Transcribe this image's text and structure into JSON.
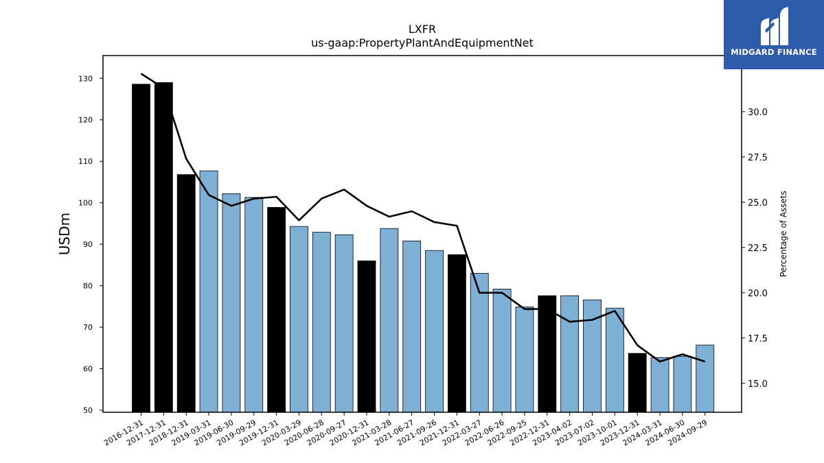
{
  "brand": {
    "name": "MIDGARD FINANCE",
    "bg_color": "#2e5bab"
  },
  "chart_data": {
    "type": "bar",
    "title": "LXFR",
    "subtitle": "us-gaap:PropertyPlantAndEquipmentNet",
    "ylabel": "USDm",
    "ylabel_right": "Percentage of Assets",
    "ylim": [
      49.5,
      135.5
    ],
    "ylim_right": [
      13.4,
      33.1
    ],
    "yticks": [
      50,
      60,
      70,
      80,
      90,
      100,
      110,
      120,
      130
    ],
    "yticks_right": [
      "15.0",
      "17.5",
      "20.0",
      "22.5",
      "25.0",
      "27.5",
      "30.0"
    ],
    "grid": false,
    "colors": {
      "annual": "#000000",
      "quarterly": "#7eb0d5",
      "line": "#000000"
    },
    "categories": [
      "2016-12-31",
      "2017-12-31",
      "2018-12-31",
      "2019-03-31",
      "2019-06-30",
      "2019-09-29",
      "2019-12-31",
      "2020-03-29",
      "2020-06-28",
      "2020-09-27",
      "2020-12-31",
      "2021-03-28",
      "2021-06-27",
      "2021-09-26",
      "2021-12-31",
      "2022-03-27",
      "2022-06-26",
      "2022-09-25",
      "2022-12-31",
      "2023-04-02",
      "2023-07-02",
      "2023-10-01",
      "2023-12-31",
      "2024-03-31",
      "2024-06-30",
      "2024-09-29"
    ],
    "series": [
      {
        "axis": "left",
        "values": [
          128.6,
          129.0,
          106.8,
          107.7,
          102.2,
          101.3,
          98.9,
          94.3,
          92.9,
          92.3,
          86.0,
          93.8,
          90.8,
          88.5,
          87.5,
          83.0,
          79.2,
          74.9,
          77.6,
          77.6,
          76.6,
          74.6,
          63.7,
          62.7,
          63.0,
          65.7
        ],
        "period": [
          "annual",
          "annual",
          "annual",
          "quarter",
          "quarter",
          "quarter",
          "annual",
          "quarter",
          "quarter",
          "quarter",
          "annual",
          "quarter",
          "quarter",
          "quarter",
          "annual",
          "quarter",
          "quarter",
          "quarter",
          "annual",
          "quarter",
          "quarter",
          "quarter",
          "annual",
          "quarter",
          "quarter",
          "quarter"
        ]
      },
      {
        "axis": "right",
        "type": "line",
        "values": [
          32.1,
          31.3,
          27.4,
          25.4,
          24.8,
          25.2,
          25.3,
          24.0,
          25.2,
          25.7,
          24.8,
          24.2,
          24.5,
          23.9,
          23.7,
          20.0,
          20.0,
          19.1,
          19.1,
          18.4,
          18.5,
          19.0,
          17.1,
          16.2,
          16.6,
          16.2
        ]
      }
    ]
  }
}
